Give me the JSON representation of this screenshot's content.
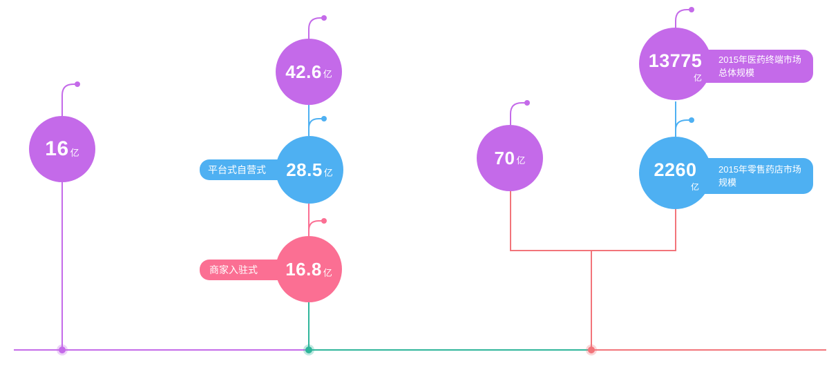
{
  "colors": {
    "purple": "#c46ae9",
    "blue": "#4eb0f2",
    "pink": "#fb6f93",
    "red_line": "#f2747a",
    "green_line": "#2fb59a"
  },
  "nodes": {
    "n16": {
      "value": "16",
      "unit": "亿"
    },
    "n42_6": {
      "value": "42.6",
      "unit": "亿"
    },
    "n28_5": {
      "value": "28.5",
      "unit": "亿",
      "tag": "平台式自营式"
    },
    "n16_8": {
      "value": "16.8",
      "unit": "亿",
      "tag": "商家入驻式"
    },
    "n70": {
      "value": "70",
      "unit": "亿"
    },
    "n13775": {
      "value": "13775",
      "unit": "亿",
      "tag": "2015年医药终端市场总体规模"
    },
    "n2260": {
      "value": "2260",
      "unit": "亿",
      "tag": "2015年零售药店市场规模"
    }
  }
}
